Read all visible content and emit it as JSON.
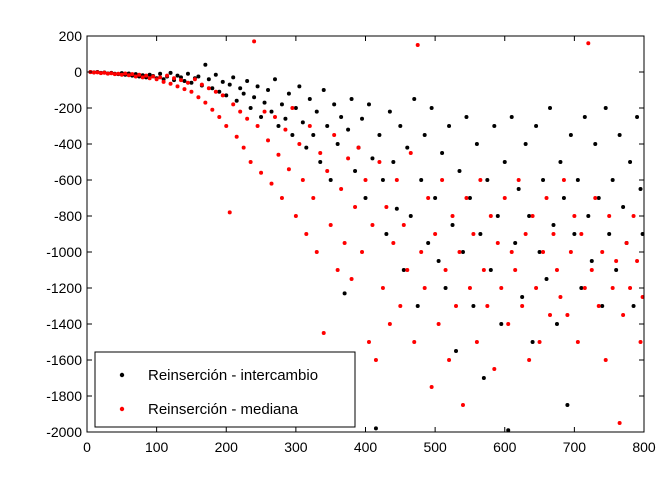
{
  "chart_data": {
    "type": "scatter",
    "title": "",
    "xlabel": "",
    "ylabel": "",
    "xlim": [
      0,
      800
    ],
    "ylim": [
      -2000,
      200
    ],
    "xticks": [
      0,
      100,
      200,
      300,
      400,
      500,
      600,
      700,
      800
    ],
    "yticks": [
      200,
      0,
      -200,
      -400,
      -600,
      -800,
      -1000,
      -1200,
      -1400,
      -1600,
      -1800,
      -2000
    ],
    "grid": false,
    "legend_position": "bottom-left",
    "series": [
      {
        "name": "Reinserción - intercambio",
        "color": "#000000",
        "marker": "dot",
        "points": [
          [
            5,
            0
          ],
          [
            10,
            -2
          ],
          [
            15,
            0
          ],
          [
            20,
            -5
          ],
          [
            25,
            -3
          ],
          [
            30,
            -8
          ],
          [
            35,
            -5
          ],
          [
            40,
            -10
          ],
          [
            45,
            -12
          ],
          [
            50,
            -6
          ],
          [
            55,
            -15
          ],
          [
            60,
            -8
          ],
          [
            65,
            -20
          ],
          [
            70,
            -12
          ],
          [
            75,
            -25
          ],
          [
            80,
            -18
          ],
          [
            85,
            -30
          ],
          [
            90,
            -15
          ],
          [
            95,
            -22
          ],
          [
            100,
            -35
          ],
          [
            105,
            -10
          ],
          [
            110,
            -40
          ],
          [
            115,
            -25
          ],
          [
            120,
            -5
          ],
          [
            125,
            -45
          ],
          [
            130,
            -20
          ],
          [
            135,
            -30
          ],
          [
            140,
            -50
          ],
          [
            145,
            -10
          ],
          [
            150,
            -60
          ],
          [
            155,
            -35
          ],
          [
            160,
            -25
          ],
          [
            165,
            -75
          ],
          [
            170,
            40
          ],
          [
            175,
            -40
          ],
          [
            180,
            -90
          ],
          [
            185,
            -15
          ],
          [
            190,
            -110
          ],
          [
            195,
            -55
          ],
          [
            200,
            -130
          ],
          [
            205,
            -70
          ],
          [
            210,
            -30
          ],
          [
            215,
            -160
          ],
          [
            220,
            -90
          ],
          [
            225,
            -120
          ],
          [
            230,
            -50
          ],
          [
            235,
            -200
          ],
          [
            240,
            -140
          ],
          [
            245,
            -80
          ],
          [
            250,
            -250
          ],
          [
            255,
            -170
          ],
          [
            260,
            -100
          ],
          [
            265,
            -220
          ],
          [
            270,
            -40
          ],
          [
            275,
            -300
          ],
          [
            280,
            -180
          ],
          [
            285,
            -260
          ],
          [
            290,
            -120
          ],
          [
            295,
            -350
          ],
          [
            300,
            -200
          ],
          [
            305,
            -80
          ],
          [
            310,
            -280
          ],
          [
            315,
            -420
          ],
          [
            320,
            -150
          ],
          [
            325,
            -350
          ],
          [
            330,
            -220
          ],
          [
            335,
            -500
          ],
          [
            340,
            -100
          ],
          [
            345,
            -300
          ],
          [
            350,
            -600
          ],
          [
            355,
            -180
          ],
          [
            360,
            -400
          ],
          [
            365,
            -250
          ],
          [
            370,
            -1230
          ],
          [
            375,
            -320
          ],
          [
            380,
            -150
          ],
          [
            385,
            -550
          ],
          [
            390,
            -420
          ],
          [
            395,
            -260
          ],
          [
            400,
            -700
          ],
          [
            405,
            -180
          ],
          [
            410,
            -480
          ],
          [
            415,
            -1980
          ],
          [
            420,
            -350
          ],
          [
            425,
            -600
          ],
          [
            430,
            -900
          ],
          [
            435,
            -220
          ],
          [
            440,
            -500
          ],
          [
            445,
            -760
          ],
          [
            450,
            -300
          ],
          [
            455,
            -1100
          ],
          [
            460,
            -420
          ],
          [
            465,
            -800
          ],
          [
            470,
            -150
          ],
          [
            475,
            -1300
          ],
          [
            480,
            -600
          ],
          [
            485,
            -350
          ],
          [
            490,
            -950
          ],
          [
            495,
            -200
          ],
          [
            500,
            -700
          ],
          [
            505,
            -1050
          ],
          [
            510,
            -450
          ],
          [
            515,
            -1200
          ],
          [
            520,
            -300
          ],
          [
            525,
            -850
          ],
          [
            530,
            -1550
          ],
          [
            535,
            -550
          ],
          [
            540,
            -1000
          ],
          [
            545,
            -250
          ],
          [
            550,
            -700
          ],
          [
            555,
            -1300
          ],
          [
            560,
            -400
          ],
          [
            565,
            -900
          ],
          [
            570,
            -1700
          ],
          [
            575,
            -600
          ],
          [
            580,
            -1100
          ],
          [
            585,
            -300
          ],
          [
            590,
            -800
          ],
          [
            595,
            -1400
          ],
          [
            600,
            -500
          ],
          [
            605,
            -1990
          ],
          [
            610,
            -250
          ],
          [
            615,
            -950
          ],
          [
            620,
            -650
          ],
          [
            625,
            -1250
          ],
          [
            630,
            -400
          ],
          [
            635,
            -800
          ],
          [
            640,
            -1500
          ],
          [
            645,
            -300
          ],
          [
            650,
            -1000
          ],
          [
            655,
            -600
          ],
          [
            660,
            -1150
          ],
          [
            665,
            -200
          ],
          [
            670,
            -850
          ],
          [
            675,
            -1400
          ],
          [
            680,
            -500
          ],
          [
            685,
            -700
          ],
          [
            690,
            -1850
          ],
          [
            695,
            -350
          ],
          [
            700,
            -900
          ],
          [
            705,
            -600
          ],
          [
            710,
            -1200
          ],
          [
            715,
            -250
          ],
          [
            720,
            -800
          ],
          [
            725,
            -1050
          ],
          [
            730,
            -400
          ],
          [
            735,
            -700
          ],
          [
            740,
            -1300
          ],
          [
            745,
            -200
          ],
          [
            750,
            -900
          ],
          [
            755,
            -600
          ],
          [
            760,
            -1100
          ],
          [
            765,
            -350
          ],
          [
            770,
            -750
          ],
          [
            775,
            -950
          ],
          [
            780,
            -500
          ],
          [
            785,
            -1300
          ],
          [
            790,
            -250
          ],
          [
            795,
            -650
          ],
          [
            798,
            -900
          ]
        ]
      },
      {
        "name": "Reinserción - mediana",
        "color": "#ff0000",
        "marker": "dot",
        "points": [
          [
            5,
            -1
          ],
          [
            10,
            -3
          ],
          [
            15,
            -2
          ],
          [
            20,
            -6
          ],
          [
            25,
            -4
          ],
          [
            30,
            -9
          ],
          [
            35,
            -7
          ],
          [
            40,
            -12
          ],
          [
            45,
            -10
          ],
          [
            50,
            -15
          ],
          [
            55,
            -8
          ],
          [
            60,
            -18
          ],
          [
            65,
            -12
          ],
          [
            70,
            -25
          ],
          [
            75,
            -15
          ],
          [
            80,
            -30
          ],
          [
            85,
            -20
          ],
          [
            90,
            -35
          ],
          [
            95,
            -25
          ],
          [
            100,
            -40
          ],
          [
            105,
            -30
          ],
          [
            110,
            -55
          ],
          [
            115,
            -20
          ],
          [
            120,
            -65
          ],
          [
            125,
            -35
          ],
          [
            130,
            -80
          ],
          [
            135,
            -45
          ],
          [
            140,
            -95
          ],
          [
            145,
            -60
          ],
          [
            150,
            -110
          ],
          [
            155,
            -40
          ],
          [
            160,
            -140
          ],
          [
            165,
            -70
          ],
          [
            170,
            -170
          ],
          [
            175,
            -90
          ],
          [
            180,
            -210
          ],
          [
            185,
            -110
          ],
          [
            190,
            -250
          ],
          [
            195,
            -130
          ],
          [
            200,
            -300
          ],
          [
            205,
            -780
          ],
          [
            210,
            -180
          ],
          [
            215,
            -360
          ],
          [
            220,
            -220
          ],
          [
            225,
            -420
          ],
          [
            230,
            -260
          ],
          [
            235,
            -500
          ],
          [
            240,
            170
          ],
          [
            245,
            -300
          ],
          [
            250,
            -560
          ],
          [
            255,
            -220
          ],
          [
            260,
            -380
          ],
          [
            265,
            -620
          ],
          [
            270,
            -250
          ],
          [
            275,
            -460
          ],
          [
            280,
            -700
          ],
          [
            285,
            -320
          ],
          [
            290,
            -540
          ],
          [
            295,
            -200
          ],
          [
            300,
            -800
          ],
          [
            305,
            -400
          ],
          [
            310,
            -600
          ],
          [
            315,
            -900
          ],
          [
            320,
            -300
          ],
          [
            325,
            -700
          ],
          [
            330,
            -1000
          ],
          [
            335,
            -450
          ],
          [
            340,
            -1450
          ],
          [
            345,
            -550
          ],
          [
            350,
            -850
          ],
          [
            355,
            -350
          ],
          [
            360,
            -1100
          ],
          [
            365,
            -650
          ],
          [
            370,
            -950
          ],
          [
            375,
            -480
          ],
          [
            380,
            -1150
          ],
          [
            385,
            -750
          ],
          [
            390,
            -420
          ],
          [
            395,
            -1000
          ],
          [
            400,
            -600
          ],
          [
            405,
            -1500
          ],
          [
            410,
            -850
          ],
          [
            415,
            -1600
          ],
          [
            420,
            -500
          ],
          [
            425,
            -1200
          ],
          [
            430,
            -750
          ],
          [
            435,
            -1400
          ],
          [
            440,
            -950
          ],
          [
            445,
            -600
          ],
          [
            450,
            -1300
          ],
          [
            455,
            -850
          ],
          [
            460,
            -1100
          ],
          [
            465,
            -450
          ],
          [
            470,
            -1500
          ],
          [
            475,
            150
          ],
          [
            480,
            -1000
          ],
          [
            485,
            -1200
          ],
          [
            490,
            -700
          ],
          [
            495,
            -1750
          ],
          [
            500,
            -900
          ],
          [
            505,
            -1400
          ],
          [
            510,
            -600
          ],
          [
            515,
            -1100
          ],
          [
            520,
            -1600
          ],
          [
            525,
            -800
          ],
          [
            530,
            -1300
          ],
          [
            535,
            -1000
          ],
          [
            540,
            -1850
          ],
          [
            545,
            -700
          ],
          [
            550,
            -1200
          ],
          [
            555,
            -900
          ],
          [
            560,
            -1500
          ],
          [
            565,
            -600
          ],
          [
            570,
            -1100
          ],
          [
            575,
            -1300
          ],
          [
            580,
            -800
          ],
          [
            585,
            -1650
          ],
          [
            590,
            -950
          ],
          [
            595,
            -1200
          ],
          [
            600,
            -700
          ],
          [
            605,
            -1400
          ],
          [
            610,
            -1000
          ],
          [
            615,
            -1100
          ],
          [
            620,
            -600
          ],
          [
            625,
            -1300
          ],
          [
            630,
            -900
          ],
          [
            635,
            -1600
          ],
          [
            640,
            -800
          ],
          [
            645,
            -1200
          ],
          [
            650,
            -1500
          ],
          [
            655,
            -1000
          ],
          [
            660,
            -700
          ],
          [
            665,
            -1350
          ],
          [
            670,
            -900
          ],
          [
            675,
            -1100
          ],
          [
            680,
            -1250
          ],
          [
            685,
            -600
          ],
          [
            690,
            -1350
          ],
          [
            695,
            -1000
          ],
          [
            700,
            -800
          ],
          [
            705,
            -1500
          ],
          [
            710,
            -900
          ],
          [
            715,
            -1200
          ],
          [
            720,
            160
          ],
          [
            725,
            -1100
          ],
          [
            730,
            -700
          ],
          [
            735,
            -1300
          ],
          [
            740,
            -1000
          ],
          [
            745,
            -1600
          ],
          [
            750,
            -800
          ],
          [
            755,
            -1200
          ],
          [
            760,
            -1050
          ],
          [
            765,
            -1950
          ],
          [
            770,
            -1350
          ],
          [
            775,
            -950
          ],
          [
            780,
            -1200
          ],
          [
            785,
            -800
          ],
          [
            790,
            -1050
          ],
          [
            795,
            -1500
          ],
          [
            798,
            -1250
          ]
        ]
      }
    ]
  }
}
